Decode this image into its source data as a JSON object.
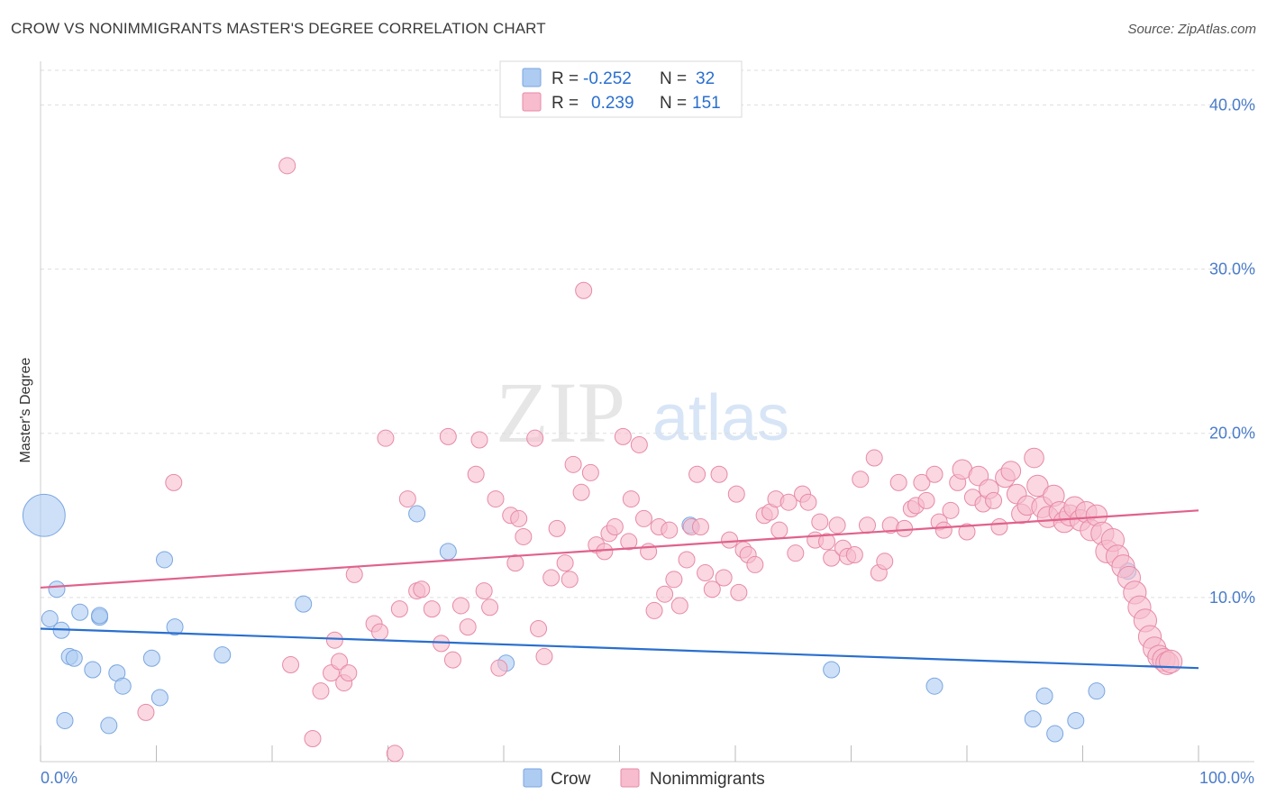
{
  "header": {
    "title": "CROW VS NONIMMIGRANTS MASTER'S DEGREE CORRELATION CHART",
    "source": "Source: ZipAtlas.com"
  },
  "watermark": {
    "zip": "ZIP",
    "atlas": "atlas"
  },
  "legend": {
    "rows": [
      {
        "r_label": "R =",
        "r_value": "-0.252",
        "n_label": "N =",
        "n_value": "32"
      },
      {
        "r_label": "R =",
        "r_value": "0.239",
        "n_label": "N =",
        "n_value": "151"
      }
    ]
  },
  "bottom_legend": {
    "items": [
      "Crow",
      "Nonimmigrants"
    ]
  },
  "colors": {
    "crow_fill": "#aecbf2",
    "crow_stroke": "#7aa6e0",
    "crow_line": "#2a6fce",
    "non_fill": "#f7bccd",
    "non_stroke": "#e78aa7",
    "non_line": "#e0628c",
    "tick_text": "#4a7cc9",
    "grid": "#dddddd"
  },
  "chart_data": {
    "type": "scatter",
    "title": "CROW VS NONIMMIGRANTS MASTER'S DEGREE CORRELATION CHART",
    "xlabel": "",
    "ylabel": "Master's Degree",
    "xlim": [
      0,
      100
    ],
    "ylim": [
      0,
      42
    ],
    "x_tick_labels": [
      "0.0%",
      "100.0%"
    ],
    "y_ticks": [
      10,
      20,
      30,
      40
    ],
    "y_tick_labels": [
      "10.0%",
      "20.0%",
      "30.0%",
      "40.0%"
    ],
    "grid": true,
    "legend_position": "top-center",
    "series": [
      {
        "name": "Crow",
        "r": -0.252,
        "n": 32,
        "trend": {
          "x": [
            0,
            100
          ],
          "y": [
            8.1,
            5.7
          ]
        },
        "points": [
          [
            0.3,
            15.0,
            2.6
          ],
          [
            0.8,
            8.7,
            1
          ],
          [
            1.4,
            10.5,
            1
          ],
          [
            1.8,
            8.0,
            1
          ],
          [
            2.1,
            2.5,
            1
          ],
          [
            2.5,
            6.4,
            1
          ],
          [
            2.9,
            6.3,
            1
          ],
          [
            3.4,
            9.1,
            1
          ],
          [
            4.5,
            5.6,
            1
          ],
          [
            5.1,
            8.8,
            1
          ],
          [
            5.1,
            8.9,
            1
          ],
          [
            5.9,
            2.2,
            1
          ],
          [
            6.6,
            5.4,
            1
          ],
          [
            7.1,
            4.6,
            1
          ],
          [
            9.6,
            6.3,
            1
          ],
          [
            10.3,
            3.9,
            1
          ],
          [
            10.7,
            12.3,
            1
          ],
          [
            11.6,
            8.2,
            1
          ],
          [
            15.7,
            6.5,
            1
          ],
          [
            22.7,
            9.6,
            1
          ],
          [
            32.5,
            15.1,
            1
          ],
          [
            35.2,
            12.8,
            1
          ],
          [
            40.2,
            6.0,
            1
          ],
          [
            56.1,
            14.4,
            1
          ],
          [
            68.3,
            5.6,
            1
          ],
          [
            77.2,
            4.6,
            1
          ],
          [
            85.7,
            2.6,
            1
          ],
          [
            86.7,
            4.0,
            1
          ],
          [
            87.6,
            1.7,
            1
          ],
          [
            89.4,
            2.5,
            1
          ],
          [
            91.2,
            4.3,
            1
          ],
          [
            93.9,
            11.6,
            1
          ]
        ]
      },
      {
        "name": "Nonimmigrants",
        "r": 0.239,
        "n": 151,
        "trend": {
          "x": [
            0,
            100
          ],
          "y": [
            10.6,
            15.3
          ]
        },
        "points": [
          [
            9.1,
            3.0,
            1
          ],
          [
            11.5,
            17.0,
            1
          ],
          [
            21.3,
            36.3,
            1
          ],
          [
            21.6,
            5.9,
            1
          ],
          [
            23.5,
            1.4,
            1
          ],
          [
            24.2,
            4.3,
            1
          ],
          [
            25.1,
            5.4,
            1
          ],
          [
            25.4,
            7.4,
            1
          ],
          [
            25.8,
            6.1,
            1
          ],
          [
            26.2,
            4.8,
            1
          ],
          [
            26.6,
            5.4,
            1
          ],
          [
            27.1,
            11.4,
            1
          ],
          [
            28.8,
            8.4,
            1
          ],
          [
            29.3,
            7.9,
            1
          ],
          [
            29.8,
            19.7,
            1
          ],
          [
            30.6,
            0.5,
            1
          ],
          [
            31.0,
            9.3,
            1
          ],
          [
            31.7,
            16.0,
            1
          ],
          [
            32.5,
            10.4,
            1
          ],
          [
            32.9,
            10.5,
            1
          ],
          [
            33.8,
            9.3,
            1
          ],
          [
            34.6,
            7.2,
            1
          ],
          [
            35.2,
            19.8,
            1
          ],
          [
            35.6,
            6.2,
            1
          ],
          [
            36.3,
            9.5,
            1
          ],
          [
            36.9,
            8.2,
            1
          ],
          [
            37.6,
            17.5,
            1
          ],
          [
            37.9,
            19.6,
            1
          ],
          [
            38.3,
            10.4,
            1
          ],
          [
            38.8,
            9.4,
            1
          ],
          [
            39.3,
            16.0,
            1
          ],
          [
            39.6,
            5.7,
            1
          ],
          [
            40.6,
            15.0,
            1
          ],
          [
            41.0,
            12.1,
            1
          ],
          [
            41.3,
            14.8,
            1
          ],
          [
            41.7,
            13.7,
            1
          ],
          [
            42.7,
            19.7,
            1
          ],
          [
            43.0,
            8.1,
            1
          ],
          [
            43.5,
            6.4,
            1
          ],
          [
            44.1,
            11.2,
            1
          ],
          [
            44.6,
            14.2,
            1
          ],
          [
            45.3,
            12.1,
            1
          ],
          [
            45.7,
            11.1,
            1
          ],
          [
            46.0,
            18.1,
            1
          ],
          [
            46.7,
            16.4,
            1
          ],
          [
            46.9,
            28.7,
            1
          ],
          [
            47.5,
            17.6,
            1
          ],
          [
            48.0,
            13.2,
            1
          ],
          [
            48.7,
            12.8,
            1
          ],
          [
            49.1,
            13.9,
            1
          ],
          [
            49.6,
            14.3,
            1
          ],
          [
            50.3,
            19.8,
            1
          ],
          [
            50.8,
            13.4,
            1
          ],
          [
            51.0,
            16.0,
            1
          ],
          [
            51.7,
            19.3,
            1
          ],
          [
            52.1,
            14.8,
            1
          ],
          [
            52.5,
            12.8,
            1
          ],
          [
            53.0,
            9.2,
            1
          ],
          [
            53.4,
            14.3,
            1
          ],
          [
            53.9,
            10.2,
            1
          ],
          [
            54.3,
            14.1,
            1
          ],
          [
            54.7,
            11.1,
            1
          ],
          [
            55.2,
            9.5,
            1
          ],
          [
            55.8,
            12.3,
            1
          ],
          [
            56.2,
            14.3,
            1
          ],
          [
            56.7,
            17.5,
            1
          ],
          [
            57.0,
            14.3,
            1
          ],
          [
            57.4,
            11.5,
            1
          ],
          [
            58.0,
            10.5,
            1
          ],
          [
            58.6,
            17.5,
            1
          ],
          [
            59.0,
            11.2,
            1
          ],
          [
            59.5,
            13.5,
            1
          ],
          [
            60.1,
            16.3,
            1
          ],
          [
            60.3,
            10.3,
            1
          ],
          [
            60.7,
            12.9,
            1
          ],
          [
            61.1,
            12.6,
            1
          ],
          [
            61.7,
            12.0,
            1
          ],
          [
            62.5,
            15.0,
            1
          ],
          [
            63.0,
            15.2,
            1
          ],
          [
            63.5,
            16.0,
            1
          ],
          [
            63.8,
            14.1,
            1
          ],
          [
            64.6,
            15.8,
            1
          ],
          [
            65.2,
            12.7,
            1
          ],
          [
            65.8,
            16.3,
            1
          ],
          [
            66.3,
            15.8,
            1
          ],
          [
            66.9,
            13.5,
            1
          ],
          [
            67.3,
            14.6,
            1
          ],
          [
            67.9,
            13.4,
            1
          ],
          [
            68.3,
            12.4,
            1
          ],
          [
            68.8,
            14.4,
            1
          ],
          [
            69.3,
            13.0,
            1
          ],
          [
            69.7,
            12.5,
            1
          ],
          [
            70.3,
            12.6,
            1
          ],
          [
            70.8,
            17.2,
            1
          ],
          [
            71.4,
            14.4,
            1
          ],
          [
            72.0,
            18.5,
            1
          ],
          [
            72.4,
            11.5,
            1
          ],
          [
            72.9,
            12.2,
            1
          ],
          [
            73.4,
            14.4,
            1
          ],
          [
            74.1,
            17.0,
            1
          ],
          [
            74.6,
            14.2,
            1
          ],
          [
            75.2,
            15.4,
            1
          ],
          [
            75.6,
            15.6,
            1
          ],
          [
            76.1,
            17.0,
            1
          ],
          [
            76.5,
            15.9,
            1
          ],
          [
            77.2,
            17.5,
            1
          ],
          [
            77.6,
            14.6,
            1
          ],
          [
            78.0,
            14.1,
            1
          ],
          [
            78.6,
            15.3,
            1
          ],
          [
            79.2,
            17.0,
            1
          ],
          [
            79.6,
            17.8,
            1.2
          ],
          [
            80.0,
            14.0,
            1
          ],
          [
            80.5,
            16.1,
            1
          ],
          [
            81.0,
            17.4,
            1.2
          ],
          [
            81.4,
            15.7,
            1
          ],
          [
            81.9,
            16.6,
            1.2
          ],
          [
            82.3,
            15.9,
            1
          ],
          [
            82.8,
            14.3,
            1
          ],
          [
            83.3,
            17.3,
            1.2
          ],
          [
            83.8,
            17.7,
            1.2
          ],
          [
            84.3,
            16.3,
            1.2
          ],
          [
            84.7,
            15.1,
            1.2
          ],
          [
            85.2,
            15.6,
            1.2
          ],
          [
            85.8,
            18.5,
            1.2
          ],
          [
            86.1,
            16.8,
            1.3
          ],
          [
            86.5,
            15.5,
            1.3
          ],
          [
            87.0,
            14.9,
            1.3
          ],
          [
            87.5,
            16.2,
            1.3
          ],
          [
            88.0,
            15.2,
            1.3
          ],
          [
            88.4,
            14.6,
            1.3
          ],
          [
            88.9,
            15.0,
            1.3
          ],
          [
            89.3,
            15.5,
            1.3
          ],
          [
            89.8,
            14.7,
            1.3
          ],
          [
            90.3,
            15.2,
            1.3
          ],
          [
            90.7,
            14.1,
            1.3
          ],
          [
            91.2,
            15.0,
            1.3
          ],
          [
            91.7,
            13.9,
            1.4
          ],
          [
            92.1,
            12.8,
            1.4
          ],
          [
            92.6,
            13.5,
            1.4
          ],
          [
            93.0,
            12.5,
            1.4
          ],
          [
            93.5,
            11.9,
            1.4
          ],
          [
            94.0,
            11.2,
            1.4
          ],
          [
            94.5,
            10.3,
            1.4
          ],
          [
            94.9,
            9.4,
            1.4
          ],
          [
            95.4,
            8.6,
            1.4
          ],
          [
            95.8,
            7.6,
            1.4
          ],
          [
            96.2,
            6.9,
            1.4
          ],
          [
            96.6,
            6.4,
            1.4
          ],
          [
            97.0,
            6.2,
            1.4
          ],
          [
            97.3,
            6.0,
            1.4
          ],
          [
            97.6,
            6.1,
            1.4
          ]
        ]
      }
    ]
  }
}
